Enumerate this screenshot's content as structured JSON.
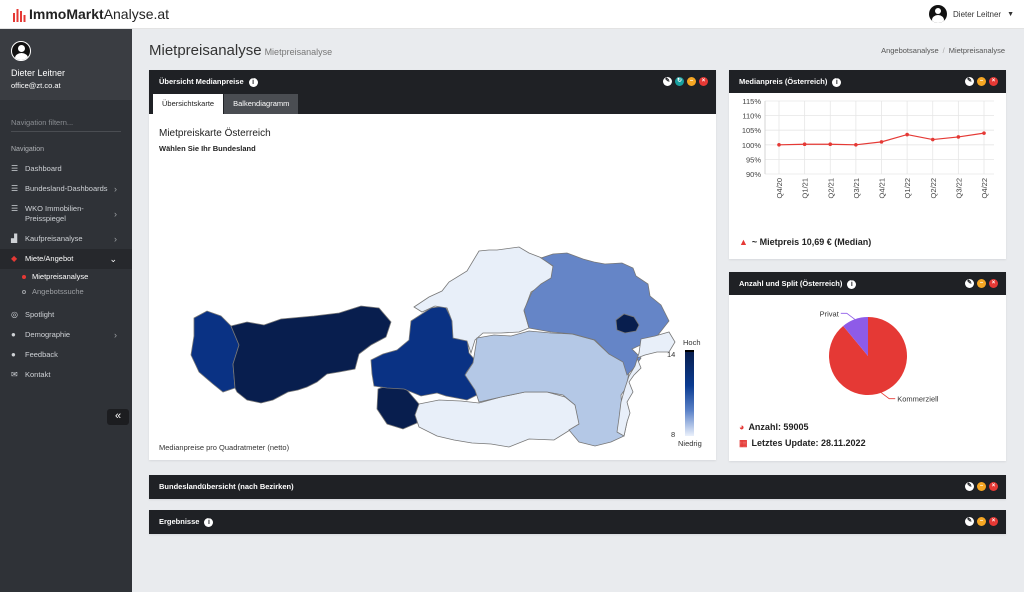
{
  "app": {
    "brand_bold": "ImmoMarkt",
    "brand_light": "Analyse.at"
  },
  "topbar": {
    "user_name": "Dieter Leitner"
  },
  "sidebar": {
    "user_name": "Dieter Leitner",
    "user_email": "office@zt.co.at",
    "filter_placeholder": "Navigation filtern...",
    "nav_heading": "Navigation",
    "items": [
      {
        "label": "Dashboard",
        "icon": "dashboard-icon"
      },
      {
        "label": "Bundesland-Dashboards",
        "icon": "list-icon"
      },
      {
        "label": "WKO Immobilien-Preisspiegel",
        "icon": "list-icon"
      },
      {
        "label": "Kaufpreisanalyse",
        "icon": "chart-icon"
      },
      {
        "label": "Miete/Angebot",
        "icon": "layers-icon"
      },
      {
        "label": "Spotlight",
        "icon": "spotlight-icon"
      },
      {
        "label": "Demographie",
        "icon": "users-icon"
      },
      {
        "label": "Feedback",
        "icon": "comment-icon"
      },
      {
        "label": "Kontakt",
        "icon": "mail-icon"
      }
    ],
    "subitems": [
      "Mietpreisanalyse",
      "Angebotssuche"
    ],
    "collapse_label": "«"
  },
  "page": {
    "title": "Mietpreisanalyse",
    "subtitle": "Mietpreisanalyse"
  },
  "breadcrumb": {
    "item1": "Angebotsanalyse",
    "sep": "/",
    "item2": "Mietpreisanalyse"
  },
  "overview_panel": {
    "title": "Übersicht Medianpreise",
    "tabs": [
      "Übersichtskarte",
      "Balkendiagramm"
    ],
    "map_title": "Mietpreiskarte Österreich",
    "map_subtitle": "Wählen Sie Ihr Bundesland",
    "map_footer": "Medianpreise pro Quadratmeter (netto)",
    "legend_high": "Hoch",
    "legend_low": "Niedrig",
    "legend_max": "14",
    "legend_min": "8"
  },
  "median_panel": {
    "title": "Medianpreis (Österreich)",
    "summary": "~ Mietpreis 10,69 € (Median)"
  },
  "split_panel": {
    "title": "Anzahl und Split (Österreich)",
    "count_text": "Anzahl: 59005",
    "update_text": "Letztes Update: 28.11.2022"
  },
  "bundesland_panel": {
    "title": "Bundeslandübersicht (nach Bezirken)"
  },
  "results_panel": {
    "title": "Ergebnisse"
  },
  "colors": {
    "accent": "#e53935",
    "panel_header": "#1f2125",
    "sidebar": "#2f3237"
  },
  "chart_data": [
    {
      "type": "line",
      "categories": [
        "Q4/20",
        "Q1/21",
        "Q2/21",
        "Q3/21",
        "Q4/21",
        "Q1/22",
        "Q2/22",
        "Q3/22",
        "Q4/22"
      ],
      "series": [
        {
          "values": [
            100.0,
            100.2,
            100.2,
            100.0,
            101.0,
            103.5,
            101.8,
            102.7,
            104.0
          ]
        }
      ],
      "yticks": [
        "90%",
        "95%",
        "100%",
        "105%",
        "110%",
        "115%"
      ],
      "ylim": [
        90,
        115
      ],
      "grid": true
    },
    {
      "type": "pie",
      "labels": [
        "Kommerziell",
        "Privat"
      ],
      "values": [
        89,
        11
      ],
      "colors": [
        "#e53935",
        "#8e5be8"
      ]
    }
  ]
}
